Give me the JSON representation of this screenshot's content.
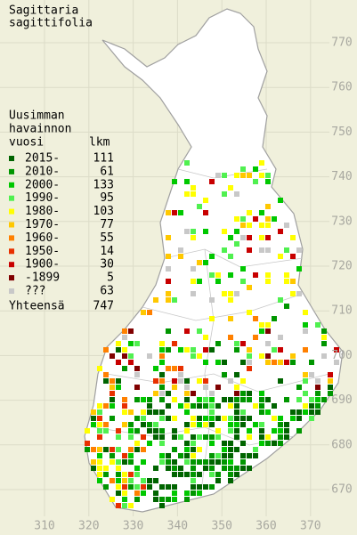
{
  "title": [
    "Sagittaria",
    "sagittifolia"
  ],
  "legend": {
    "header": [
      "Uusimman",
      "havainnon"
    ],
    "header_year": "vuosi",
    "header_count": "lkm",
    "items": [
      {
        "label": "2015-",
        "count": 111,
        "color": "#006400"
      },
      {
        "label": "2010-",
        "count": 61,
        "color": "#009600"
      },
      {
        "label": "2000-",
        "count": 133,
        "color": "#00c800"
      },
      {
        "label": "1990-",
        "count": 95,
        "color": "#50f050"
      },
      {
        "label": "1980-",
        "count": 103,
        "color": "#ffff00"
      },
      {
        "label": "1970-",
        "count": 77,
        "color": "#ffc800"
      },
      {
        "label": "1960-",
        "count": 55,
        "color": "#ff8000"
      },
      {
        "label": "1950-",
        "count": 14,
        "color": "#e83000"
      },
      {
        "label": "1900-",
        "count": 30,
        "color": "#c80000"
      },
      {
        "label": "-1899",
        "count": 5,
        "color": "#800000"
      },
      {
        "label": "???",
        "count": 63,
        "color": "#c8c8c8"
      }
    ],
    "total_label": "Yhteensä",
    "total": 747
  },
  "axes": {
    "x_ticks": [
      310,
      320,
      330,
      340,
      350,
      360,
      370
    ],
    "y_ticks": [
      670,
      680,
      690,
      700,
      710,
      720,
      730,
      740,
      750,
      760,
      770
    ]
  }
}
